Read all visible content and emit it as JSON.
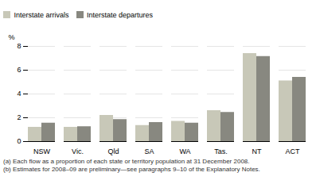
{
  "chart_data": {
    "type": "bar",
    "ylabel": "%",
    "categories": [
      "NSW",
      "Vic.",
      "Qld",
      "SA",
      "WA",
      "Tas.",
      "NT",
      "ACT"
    ],
    "series": [
      {
        "name": "Interstate arrivals",
        "color": "#c8c8b8",
        "values": [
          1.2,
          1.2,
          2.2,
          1.35,
          1.7,
          2.6,
          7.4,
          5.1
        ]
      },
      {
        "name": "Interstate departures",
        "color": "#888880",
        "values": [
          1.55,
          1.25,
          1.85,
          1.6,
          1.55,
          2.45,
          7.15,
          5.4
        ]
      }
    ],
    "ylim": [
      0,
      8
    ],
    "yticks": [
      0,
      2,
      4,
      6,
      8
    ],
    "grid": true,
    "legend": "upper left",
    "annotations": [
      "(a)  Each flow as a proportion of each state or territory population at 31 December 2008.",
      "(b)  Estimates for 2008–09 are preliminary—see paragraphs 9–10 of the Explanatory Notes."
    ]
  }
}
